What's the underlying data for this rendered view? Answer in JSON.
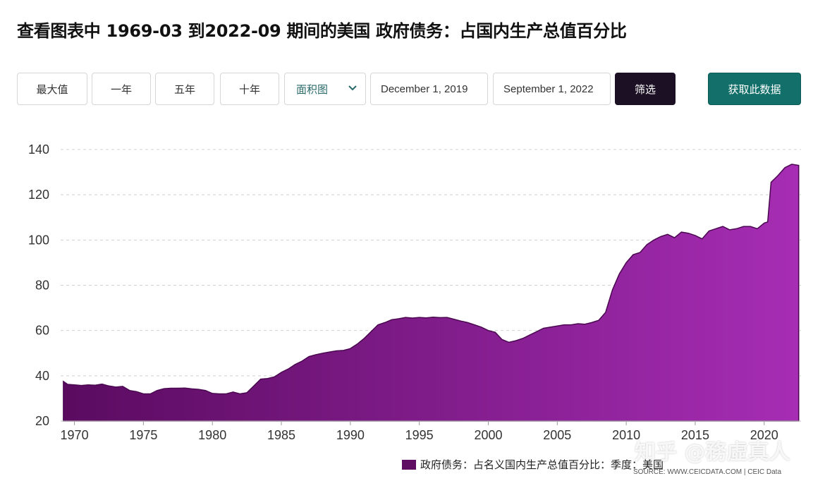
{
  "page": {
    "title": "查看图表中 1969-03 到2022-09 期间的美国 政府债务：占国内生产总值百分比"
  },
  "toolbar": {
    "max_label": "最大值",
    "one_year_label": "一年",
    "five_year_label": "五年",
    "ten_year_label": "十年",
    "chart_type": "面积图",
    "start_date": "December 1, 2019",
    "end_date": "September 1, 2022",
    "filter_label": "筛选",
    "fetch_label": "获取此数据"
  },
  "legend": {
    "label": "政府债务：占名义国内生产总值百分比：季度：美国"
  },
  "source": "SOURCE: WWW.CEICDATA.COM | CEIC Data",
  "watermark": "知乎 @務虛真人",
  "colors": {
    "area_top": "#5a0b60",
    "area_bottom": "#a62db4",
    "fetch_button": "#136f6a",
    "filter_button": "#1c1024"
  },
  "chart_data": {
    "type": "area",
    "title": "",
    "xlabel": "",
    "ylabel": "",
    "ylim": [
      20,
      140
    ],
    "xlim": [
      1969.0,
      2022.67
    ],
    "yticks": [
      "20",
      "40",
      "60",
      "80",
      "100",
      "120",
      "140"
    ],
    "xticks": [
      "1970",
      "1975",
      "1980",
      "1985",
      "1990",
      "1995",
      "2000",
      "2005",
      "2010",
      "2015",
      "2020"
    ],
    "grid": true,
    "legend_position": "bottom-right",
    "series": [
      {
        "name": "政府债务：占名义国内生产总值百分比：季度：美国",
        "x": [
          1969.2,
          1969.5,
          1970.0,
          1970.5,
          1971.0,
          1971.5,
          1972.0,
          1972.5,
          1973.0,
          1973.5,
          1974.0,
          1974.5,
          1975.0,
          1975.5,
          1976.0,
          1976.5,
          1977.0,
          1977.5,
          1978.0,
          1978.5,
          1979.0,
          1979.5,
          1980.0,
          1980.5,
          1981.0,
          1981.5,
          1982.0,
          1982.5,
          1983.0,
          1983.5,
          1984.0,
          1984.5,
          1985.0,
          1985.5,
          1986.0,
          1986.5,
          1987.0,
          1987.5,
          1988.0,
          1988.5,
          1989.0,
          1989.5,
          1990.0,
          1990.5,
          1991.0,
          1991.5,
          1992.0,
          1992.5,
          1993.0,
          1993.5,
          1994.0,
          1994.5,
          1995.0,
          1995.5,
          1996.0,
          1996.5,
          1997.0,
          1997.5,
          1998.0,
          1998.5,
          1999.0,
          1999.5,
          2000.0,
          2000.5,
          2001.0,
          2001.5,
          2002.0,
          2002.5,
          2003.0,
          2003.5,
          2004.0,
          2004.5,
          2005.0,
          2005.5,
          2006.0,
          2006.5,
          2007.0,
          2007.5,
          2008.0,
          2008.5,
          2009.0,
          2009.5,
          2010.0,
          2010.5,
          2011.0,
          2011.5,
          2012.0,
          2012.5,
          2013.0,
          2013.5,
          2014.0,
          2014.5,
          2015.0,
          2015.5,
          2016.0,
          2016.5,
          2017.0,
          2017.5,
          2018.0,
          2018.5,
          2019.0,
          2019.5,
          2020.0,
          2020.25,
          2020.5,
          2021.0,
          2021.5,
          2022.0,
          2022.5
        ],
        "values": [
          37.5,
          36.2,
          36.0,
          35.7,
          36.0,
          35.8,
          36.3,
          35.5,
          35.0,
          35.3,
          33.5,
          33.0,
          32.0,
          32.0,
          33.5,
          34.3,
          34.5,
          34.5,
          34.6,
          34.2,
          34.0,
          33.5,
          32.2,
          32.0,
          32.0,
          32.8,
          32.0,
          32.5,
          35.5,
          38.5,
          38.8,
          39.5,
          41.5,
          43.0,
          45.0,
          46.5,
          48.5,
          49.3,
          50.0,
          50.5,
          51.0,
          51.2,
          52.0,
          54.0,
          56.5,
          59.5,
          62.5,
          63.5,
          64.8,
          65.2,
          65.8,
          65.5,
          65.8,
          65.6,
          65.9,
          65.7,
          65.8,
          65.0,
          64.2,
          63.5,
          62.5,
          61.5,
          60.0,
          59.2,
          56.0,
          54.8,
          55.5,
          56.5,
          58.0,
          59.5,
          61.0,
          61.5,
          62.0,
          62.5,
          62.5,
          63.0,
          62.8,
          63.5,
          64.5,
          68.0,
          78.0,
          85.0,
          90.0,
          93.5,
          94.5,
          98.0,
          100.0,
          101.5,
          102.5,
          101.0,
          103.5,
          103.0,
          102.0,
          100.5,
          104.0,
          105.0,
          106.0,
          104.5,
          105.0,
          106.0,
          106.0,
          105.0,
          107.5,
          108.0,
          125.5,
          128.5,
          132.0,
          133.5,
          133.0
        ]
      }
    ]
  }
}
